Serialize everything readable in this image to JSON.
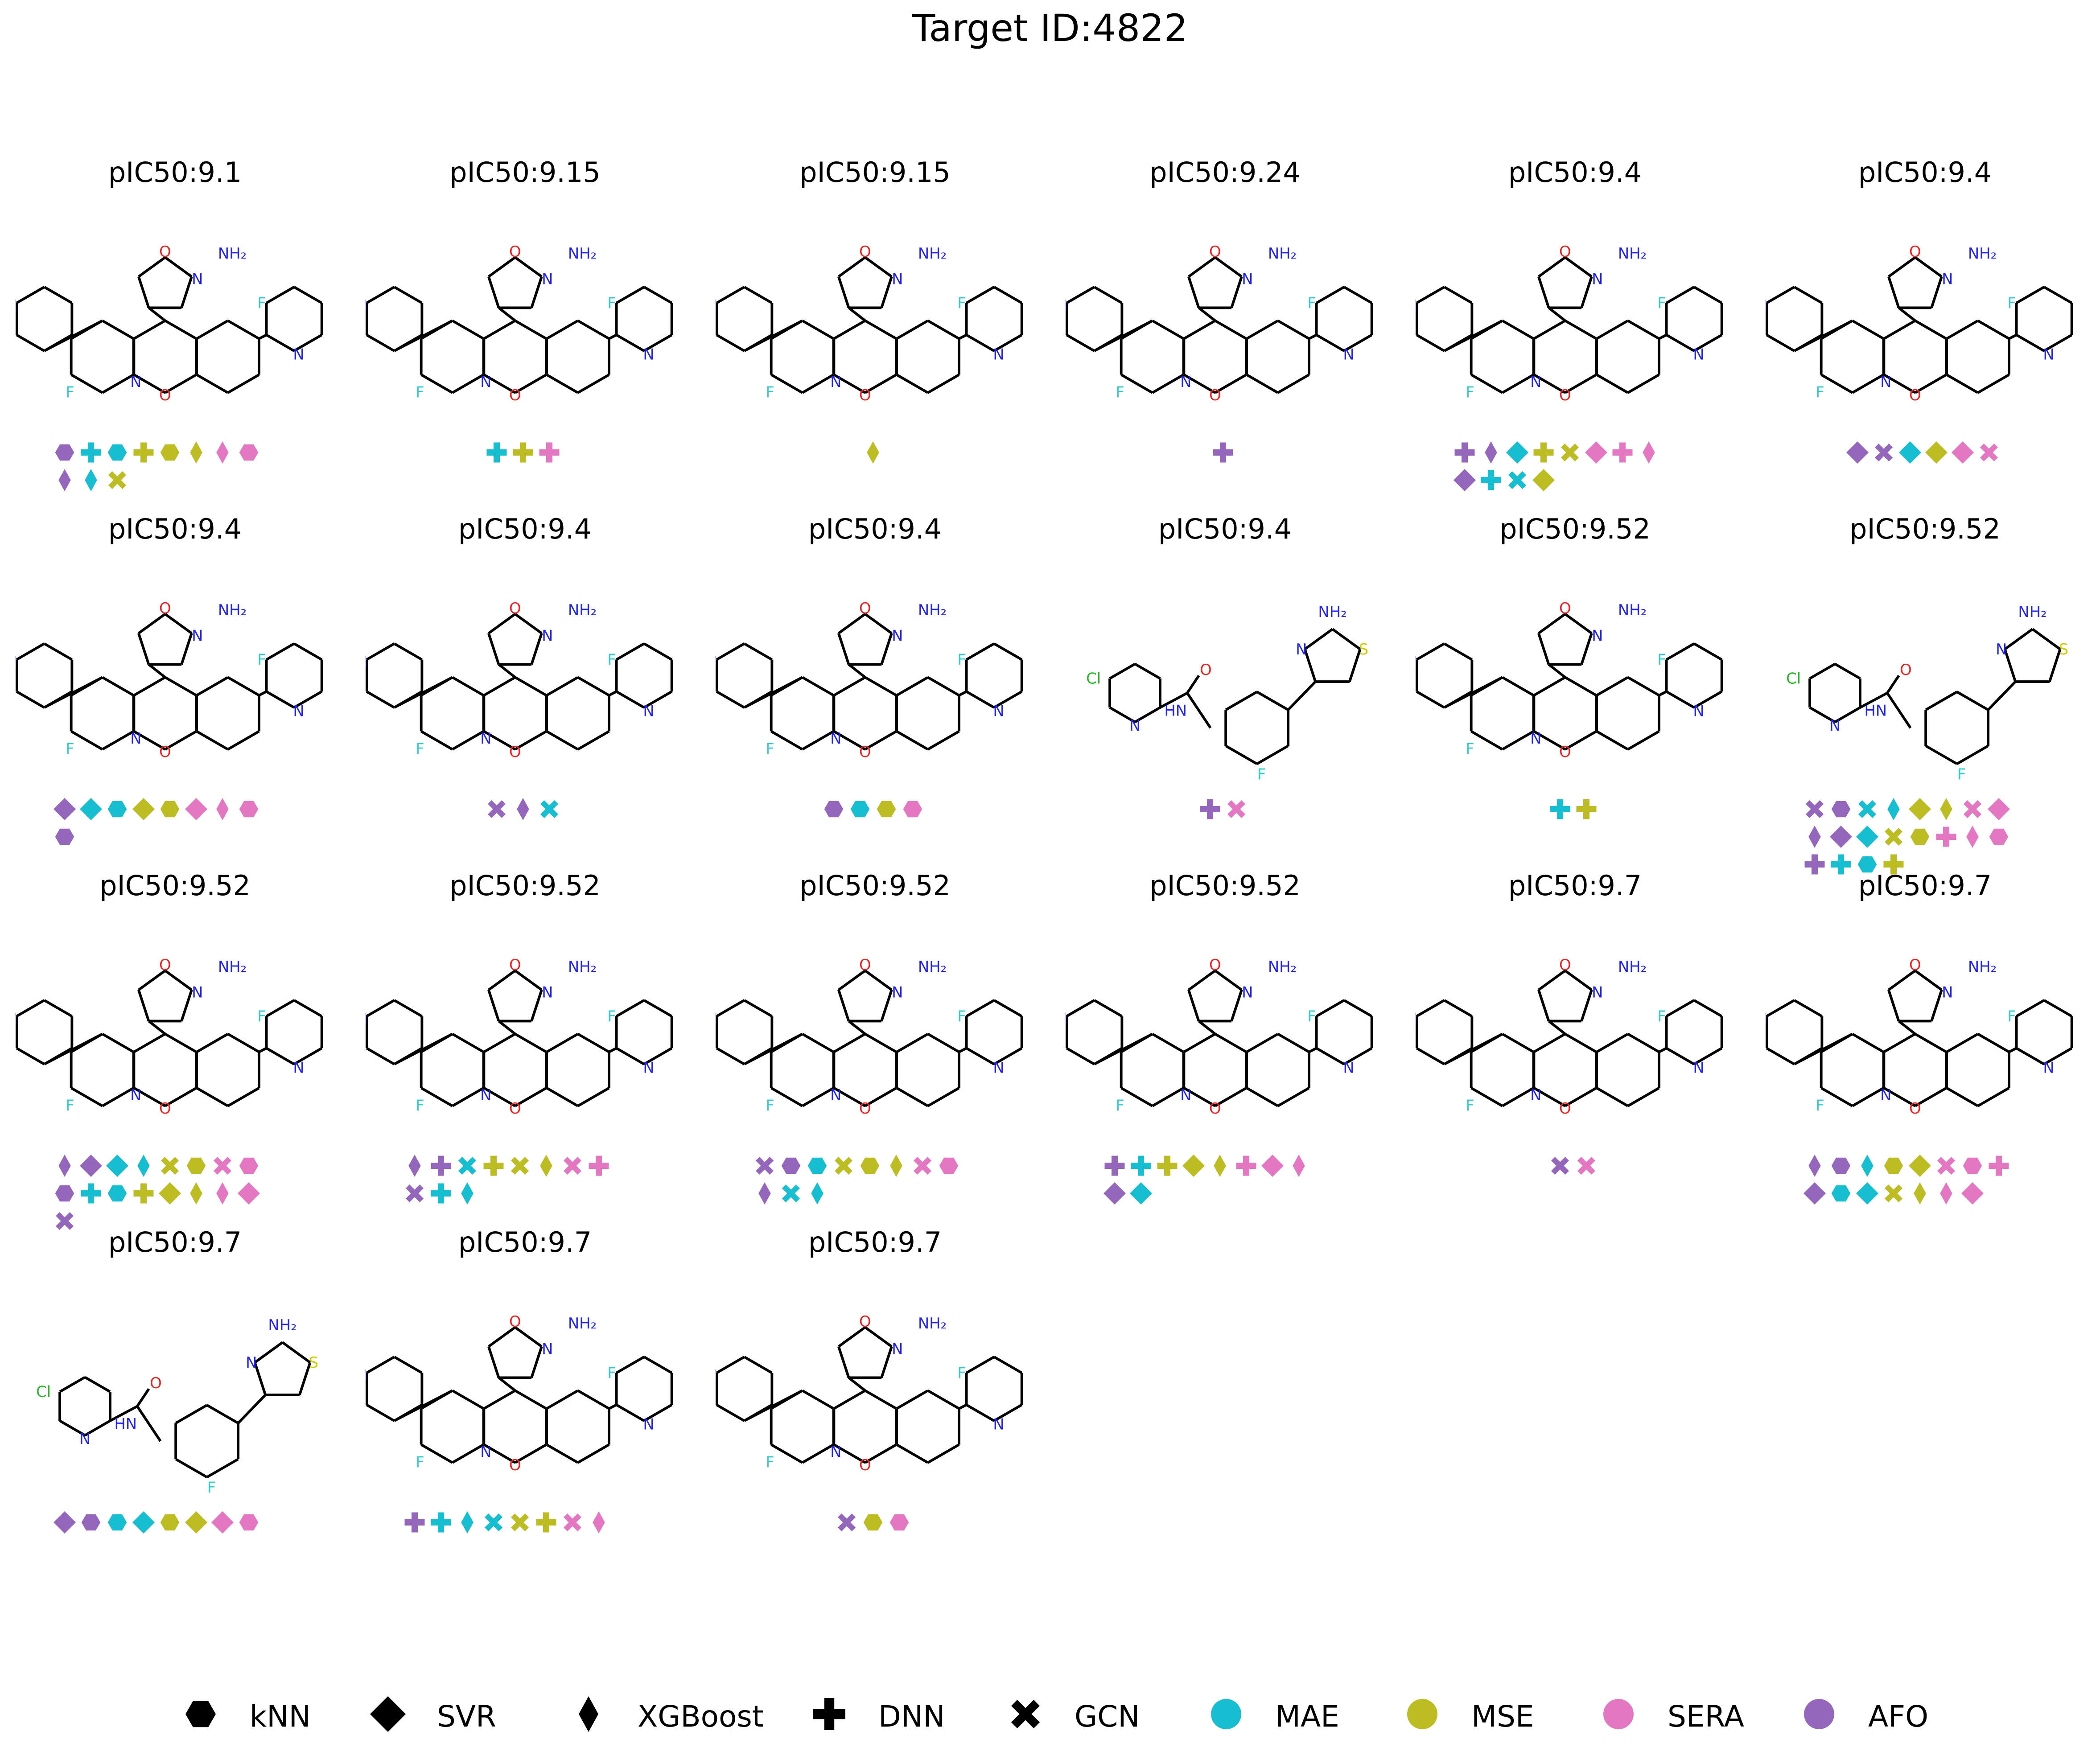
{
  "title": "Target ID:4822",
  "colors": {
    "MAE": "#17becf",
    "MSE": "#bcbd22",
    "SERA": "#e377c2",
    "AFO": "#9467bd",
    "bond": "#000000",
    "N": "#2222ee",
    "O": "#ee2222",
    "F": "#33cccc",
    "S": "#cccc00",
    "Cl": "#22bb22"
  },
  "legend": {
    "shapes": [
      {
        "key": "hex",
        "label": "kNN"
      },
      {
        "key": "diamond",
        "label": "SVR"
      },
      {
        "key": "thin",
        "label": "XGBoost"
      },
      {
        "key": "plus",
        "label": "DNN"
      },
      {
        "key": "x",
        "label": "GCN"
      }
    ],
    "metrics": [
      {
        "key": "MAE",
        "label": "MAE"
      },
      {
        "key": "MSE",
        "label": "MSE"
      },
      {
        "key": "SERA",
        "label": "SERA"
      },
      {
        "key": "AFO",
        "label": "AFO"
      }
    ]
  },
  "molecules": [
    {
      "label": "pIC50:9.1",
      "kind": "core",
      "markers": [
        [
          "hex",
          "AFO"
        ],
        [
          "plus",
          "MAE"
        ],
        [
          "hex",
          "MAE"
        ],
        [
          "plus",
          "MSE"
        ],
        [
          "hex",
          "MSE"
        ],
        [
          "thin",
          "MSE"
        ],
        [
          "thin",
          "SERA"
        ],
        [
          "hex",
          "SERA"
        ],
        [
          "thin",
          "AFO"
        ],
        [
          "thin",
          "MAE"
        ],
        [
          "x",
          "MSE"
        ]
      ]
    },
    {
      "label": "pIC50:9.15",
      "kind": "core",
      "markers": [
        [
          "plus",
          "MAE"
        ],
        [
          "plus",
          "MSE"
        ],
        [
          "plus",
          "SERA"
        ]
      ]
    },
    {
      "label": "pIC50:9.15",
      "kind": "core",
      "markers": [
        [
          "thin",
          "MSE"
        ]
      ]
    },
    {
      "label": "pIC50:9.24",
      "kind": "core",
      "markers": [
        [
          "plus",
          "AFO"
        ]
      ]
    },
    {
      "label": "pIC50:9.4",
      "kind": "core",
      "markers": [
        [
          "plus",
          "AFO"
        ],
        [
          "thin",
          "AFO"
        ],
        [
          "diamond",
          "MAE"
        ],
        [
          "plus",
          "MSE"
        ],
        [
          "x",
          "MSE"
        ],
        [
          "diamond",
          "SERA"
        ],
        [
          "plus",
          "SERA"
        ],
        [
          "thin",
          "SERA"
        ],
        [
          "diamond",
          "AFO"
        ],
        [
          "plus",
          "MAE"
        ],
        [
          "x",
          "MAE"
        ],
        [
          "diamond",
          "MSE"
        ]
      ]
    },
    {
      "label": "pIC50:9.4",
      "kind": "core",
      "markers": [
        [
          "diamond",
          "AFO"
        ],
        [
          "x",
          "AFO"
        ],
        [
          "diamond",
          "MAE"
        ],
        [
          "diamond",
          "MSE"
        ],
        [
          "diamond",
          "SERA"
        ],
        [
          "x",
          "SERA"
        ]
      ]
    },
    {
      "label": "pIC50:9.4",
      "kind": "core",
      "markers": [
        [
          "diamond",
          "AFO"
        ],
        [
          "diamond",
          "MAE"
        ],
        [
          "hex",
          "MAE"
        ],
        [
          "diamond",
          "MSE"
        ],
        [
          "hex",
          "MSE"
        ],
        [
          "diamond",
          "SERA"
        ],
        [
          "thin",
          "SERA"
        ],
        [
          "hex",
          "SERA"
        ],
        [
          "hex",
          "AFO"
        ]
      ]
    },
    {
      "label": "pIC50:9.4",
      "kind": "core",
      "markers": [
        [
          "x",
          "AFO"
        ],
        [
          "thin",
          "AFO"
        ],
        [
          "x",
          "MAE"
        ]
      ]
    },
    {
      "label": "pIC50:9.4",
      "kind": "core",
      "markers": [
        [
          "hex",
          "AFO"
        ],
        [
          "hex",
          "MAE"
        ],
        [
          "hex",
          "MSE"
        ],
        [
          "hex",
          "SERA"
        ]
      ]
    },
    {
      "label": "pIC50:9.4",
      "kind": "bicyclic",
      "markers": [
        [
          "plus",
          "AFO"
        ],
        [
          "x",
          "SERA"
        ]
      ]
    },
    {
      "label": "pIC50:9.52",
      "kind": "core",
      "markers": [
        [
          "plus",
          "MAE"
        ],
        [
          "plus",
          "MSE"
        ]
      ]
    },
    {
      "label": "pIC50:9.52",
      "kind": "bicyclic",
      "markers": [
        [
          "x",
          "AFO"
        ],
        [
          "hex",
          "AFO"
        ],
        [
          "x",
          "MAE"
        ],
        [
          "thin",
          "MAE"
        ],
        [
          "diamond",
          "MSE"
        ],
        [
          "thin",
          "MSE"
        ],
        [
          "x",
          "SERA"
        ],
        [
          "diamond",
          "SERA"
        ],
        [
          "thin",
          "AFO"
        ],
        [
          "diamond",
          "AFO"
        ],
        [
          "diamond",
          "MAE"
        ],
        [
          "x",
          "MSE"
        ],
        [
          "hex",
          "MSE"
        ],
        [
          "plus",
          "SERA"
        ],
        [
          "thin",
          "SERA"
        ],
        [
          "hex",
          "SERA"
        ],
        [
          "plus",
          "AFO"
        ],
        [
          "plus",
          "MAE"
        ],
        [
          "hex",
          "MAE"
        ],
        [
          "plus",
          "MSE"
        ]
      ]
    },
    {
      "label": "pIC50:9.52",
      "kind": "core",
      "markers": [
        [
          "thin",
          "AFO"
        ],
        [
          "diamond",
          "AFO"
        ],
        [
          "diamond",
          "MAE"
        ],
        [
          "thin",
          "MAE"
        ],
        [
          "x",
          "MSE"
        ],
        [
          "hex",
          "MSE"
        ],
        [
          "x",
          "SERA"
        ],
        [
          "hex",
          "SERA"
        ],
        [
          "hex",
          "AFO"
        ],
        [
          "plus",
          "MAE"
        ],
        [
          "hex",
          "MAE"
        ],
        [
          "plus",
          "MSE"
        ],
        [
          "diamond",
          "MSE"
        ],
        [
          "thin",
          "MSE"
        ],
        [
          "thin",
          "SERA"
        ],
        [
          "diamond",
          "SERA"
        ],
        [
          "x",
          "AFO"
        ]
      ]
    },
    {
      "label": "pIC50:9.52",
      "kind": "core",
      "markers": [
        [
          "thin",
          "AFO"
        ],
        [
          "plus",
          "AFO"
        ],
        [
          "x",
          "MAE"
        ],
        [
          "plus",
          "MSE"
        ],
        [
          "x",
          "MSE"
        ],
        [
          "thin",
          "MSE"
        ],
        [
          "x",
          "SERA"
        ],
        [
          "plus",
          "SERA"
        ],
        [
          "x",
          "AFO"
        ],
        [
          "plus",
          "MAE"
        ],
        [
          "thin",
          "MAE"
        ]
      ]
    },
    {
      "label": "pIC50:9.52",
      "kind": "core",
      "markers": [
        [
          "x",
          "AFO"
        ],
        [
          "hex",
          "AFO"
        ],
        [
          "hex",
          "MAE"
        ],
        [
          "x",
          "MSE"
        ],
        [
          "hex",
          "MSE"
        ],
        [
          "thin",
          "MSE"
        ],
        [
          "x",
          "SERA"
        ],
        [
          "hex",
          "SERA"
        ],
        [
          "thin",
          "AFO"
        ],
        [
          "x",
          "MAE"
        ],
        [
          "thin",
          "MAE"
        ]
      ]
    },
    {
      "label": "pIC50:9.52",
      "kind": "core",
      "markers": [
        [
          "plus",
          "AFO"
        ],
        [
          "plus",
          "MAE"
        ],
        [
          "plus",
          "MSE"
        ],
        [
          "diamond",
          "MSE"
        ],
        [
          "thin",
          "MSE"
        ],
        [
          "plus",
          "SERA"
        ],
        [
          "diamond",
          "SERA"
        ],
        [
          "thin",
          "SERA"
        ],
        [
          "diamond",
          "AFO"
        ],
        [
          "diamond",
          "MAE"
        ]
      ]
    },
    {
      "label": "pIC50:9.7",
      "kind": "core",
      "markers": [
        [
          "x",
          "AFO"
        ],
        [
          "x",
          "SERA"
        ]
      ]
    },
    {
      "label": "pIC50:9.7",
      "kind": "core",
      "markers": [
        [
          "thin",
          "AFO"
        ],
        [
          "hex",
          "AFO"
        ],
        [
          "thin",
          "MAE"
        ],
        [
          "hex",
          "MSE"
        ],
        [
          "diamond",
          "MSE"
        ],
        [
          "x",
          "SERA"
        ],
        [
          "hex",
          "SERA"
        ],
        [
          "plus",
          "SERA"
        ],
        [
          "diamond",
          "AFO"
        ],
        [
          "hex",
          "MAE"
        ],
        [
          "diamond",
          "MAE"
        ],
        [
          "x",
          "MSE"
        ],
        [
          "thin",
          "MSE"
        ],
        [
          "thin",
          "SERA"
        ],
        [
          "diamond",
          "SERA"
        ]
      ]
    },
    {
      "label": "pIC50:9.7",
      "kind": "bicyclic",
      "markers": [
        [
          "diamond",
          "AFO"
        ],
        [
          "hex",
          "AFO"
        ],
        [
          "hex",
          "MAE"
        ],
        [
          "diamond",
          "MAE"
        ],
        [
          "hex",
          "MSE"
        ],
        [
          "diamond",
          "MSE"
        ],
        [
          "diamond",
          "SERA"
        ],
        [
          "hex",
          "SERA"
        ]
      ]
    },
    {
      "label": "pIC50:9.7",
      "kind": "core",
      "markers": [
        [
          "plus",
          "AFO"
        ],
        [
          "plus",
          "MAE"
        ],
        [
          "thin",
          "MAE"
        ],
        [
          "x",
          "MAE"
        ],
        [
          "x",
          "MSE"
        ],
        [
          "plus",
          "MSE"
        ],
        [
          "x",
          "SERA"
        ],
        [
          "thin",
          "SERA"
        ]
      ]
    },
    {
      "label": "pIC50:9.7",
      "kind": "core",
      "markers": [
        [
          "x",
          "AFO"
        ],
        [
          "hex",
          "MSE"
        ],
        [
          "hex",
          "SERA"
        ]
      ]
    }
  ]
}
